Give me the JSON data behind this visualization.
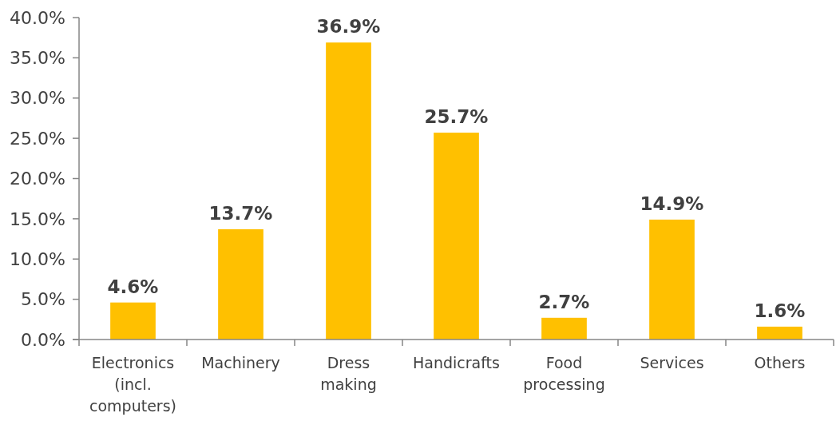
{
  "chart_data": {
    "type": "bar",
    "categories": [
      "Electronics (incl. computers)",
      "Machinery",
      "Dress making",
      "Handicrafts",
      "Food processing",
      "Services",
      "Others"
    ],
    "values": [
      4.6,
      13.7,
      36.9,
      25.7,
      2.7,
      14.9,
      1.6
    ],
    "value_labels": [
      "4.6%",
      "13.7%",
      "36.9%",
      "25.7%",
      "2.7%",
      "14.9%",
      "1.6%"
    ],
    "color": "#ffc000",
    "ylim": [
      0,
      40
    ],
    "yticks": [
      {
        "value": 0,
        "label": "0.0%"
      },
      {
        "value": 5,
        "label": "5.0%"
      },
      {
        "value": 10,
        "label": "10.0%"
      },
      {
        "value": 15,
        "label": "15.0%"
      },
      {
        "value": 20,
        "label": "20.0%"
      },
      {
        "value": 25,
        "label": "25.0%"
      },
      {
        "value": 30,
        "label": "30.0%"
      },
      {
        "value": 35,
        "label": "35.0%"
      },
      {
        "value": 40,
        "label": "40.0%"
      }
    ],
    "grid": false
  }
}
